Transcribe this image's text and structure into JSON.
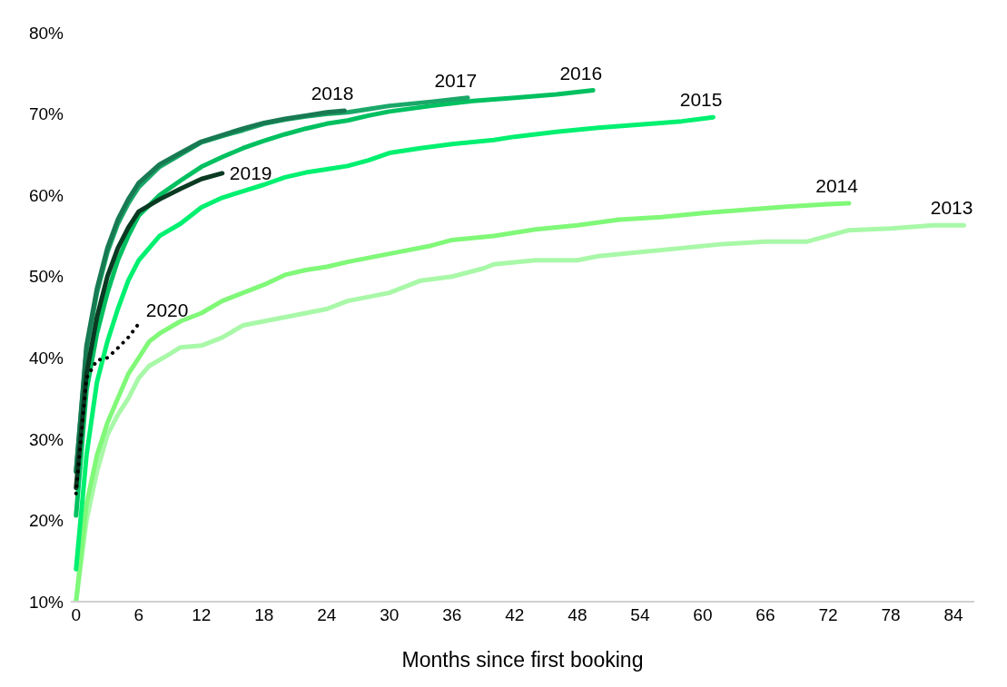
{
  "chart_data": {
    "type": "line",
    "xlabel": "Months since first booking",
    "xlim": [
      -0.5,
      86
    ],
    "xticks": [
      0,
      6,
      12,
      18,
      24,
      30,
      36,
      42,
      48,
      54,
      60,
      66,
      72,
      78,
      84
    ],
    "ylim": [
      10,
      80
    ],
    "yticks": [
      {
        "value": 10,
        "label": "10%"
      },
      {
        "value": 20,
        "label": "20%"
      },
      {
        "value": 30,
        "label": "30%"
      },
      {
        "value": 40,
        "label": "40%"
      },
      {
        "value": 50,
        "label": "50%"
      },
      {
        "value": 60,
        "label": "60%"
      },
      {
        "value": 70,
        "label": "70%"
      },
      {
        "value": 80,
        "label": "80%"
      }
    ],
    "grid": false,
    "legend": false,
    "marker": "none",
    "series": [
      {
        "name": "2013",
        "color": "#a8f8a8",
        "x": [
          0,
          1,
          2,
          3,
          4,
          5,
          6,
          7,
          9,
          10,
          12,
          14,
          16,
          18,
          20,
          22,
          24,
          26,
          28,
          30,
          33,
          36,
          39,
          40,
          44,
          48,
          50,
          54,
          58,
          62,
          66,
          70,
          74,
          78,
          82,
          85
        ],
        "values": [
          10,
          20,
          26,
          30.5,
          33,
          35,
          37.5,
          39,
          40.5,
          41.3,
          41.5,
          42.5,
          44,
          44.5,
          45,
          45.5,
          46,
          47,
          47.5,
          48,
          49.5,
          50,
          51,
          51.5,
          52,
          52,
          52.5,
          53,
          53.5,
          54,
          54.3,
          54.3,
          55.7,
          55.9,
          56.3,
          56.3
        ]
      },
      {
        "name": "2014",
        "color": "#80f878",
        "x": [
          0,
          1,
          2,
          3,
          4,
          5,
          6,
          7,
          8,
          10,
          12,
          14,
          16,
          18,
          20,
          22,
          24,
          26,
          28,
          30,
          34,
          36,
          40,
          44,
          48,
          52,
          56,
          60,
          64,
          68,
          72,
          74
        ],
        "values": [
          10,
          22,
          28,
          32,
          35,
          38,
          40,
          42,
          43,
          44.5,
          45.5,
          47,
          48,
          49,
          50.2,
          50.8,
          51.2,
          51.8,
          52.3,
          52.8,
          53.8,
          54.5,
          55,
          55.8,
          56.3,
          57,
          57.3,
          57.8,
          58.2,
          58.6,
          58.9,
          59
        ]
      },
      {
        "name": "2015",
        "color": "#00f070",
        "x": [
          0,
          1,
          2,
          3,
          4,
          5,
          6,
          8,
          10,
          12,
          14,
          16,
          18,
          20,
          22,
          24,
          26,
          28,
          30,
          33,
          36,
          40,
          42,
          46,
          50,
          54,
          58,
          61
        ],
        "values": [
          14,
          28,
          37,
          42,
          46,
          49.5,
          52,
          55,
          56.5,
          58.5,
          59.7,
          60.5,
          61.3,
          62.2,
          62.8,
          63.2,
          63.6,
          64.3,
          65.2,
          65.8,
          66.3,
          66.8,
          67.2,
          67.8,
          68.3,
          68.7,
          69.1,
          69.6
        ]
      },
      {
        "name": "2016",
        "color": "#00c060",
        "x": [
          0,
          1,
          2,
          3,
          4,
          5,
          6,
          8,
          10,
          12,
          14,
          16,
          18,
          20,
          22,
          24,
          26,
          28,
          30,
          34,
          38,
          42,
          46,
          49.5
        ],
        "values": [
          20.6,
          36,
          43,
          48,
          52,
          55,
          57.5,
          60,
          61.8,
          63.5,
          64.7,
          65.8,
          66.7,
          67.5,
          68.2,
          68.8,
          69.2,
          69.8,
          70.3,
          71,
          71.6,
          72,
          72.4,
          72.9
        ]
      },
      {
        "name": "2017",
        "color": "#1aa868",
        "x": [
          0,
          1,
          2,
          3,
          4,
          5,
          6,
          8,
          10,
          12,
          14,
          16,
          18,
          20,
          22,
          24,
          26,
          28,
          30,
          34,
          37.5
        ],
        "values": [
          26,
          41,
          48,
          53,
          56.5,
          59,
          61,
          63.5,
          65,
          66.5,
          67.3,
          68,
          68.8,
          69.3,
          69.7,
          70,
          70.2,
          70.6,
          71,
          71.5,
          72
        ]
      },
      {
        "name": "2018",
        "color": "#177a52",
        "x": [
          0,
          1,
          2,
          3,
          4,
          5,
          6,
          8,
          10,
          12,
          14,
          16,
          18,
          20,
          22,
          24,
          25.7
        ],
        "values": [
          26,
          41.5,
          48.5,
          53.5,
          57,
          59.5,
          61.5,
          63.8,
          65.2,
          66.6,
          67.4,
          68.2,
          68.9,
          69.4,
          69.8,
          70.2,
          70.4
        ]
      },
      {
        "name": "2019",
        "color": "#0a3a22",
        "x": [
          0,
          1,
          2,
          3,
          4,
          5,
          6,
          8,
          10,
          12,
          14
        ],
        "values": [
          24,
          38,
          45,
          50,
          53.5,
          56,
          58,
          59.5,
          60.8,
          62,
          62.7
        ]
      },
      {
        "name": "2020",
        "color": "#000000",
        "line_style": "dotted",
        "x": [
          0,
          1,
          2,
          3,
          4,
          5,
          6
        ],
        "values": [
          23.3,
          37.5,
          39.7,
          40,
          41.2,
          42.5,
          44.2
        ]
      }
    ]
  }
}
